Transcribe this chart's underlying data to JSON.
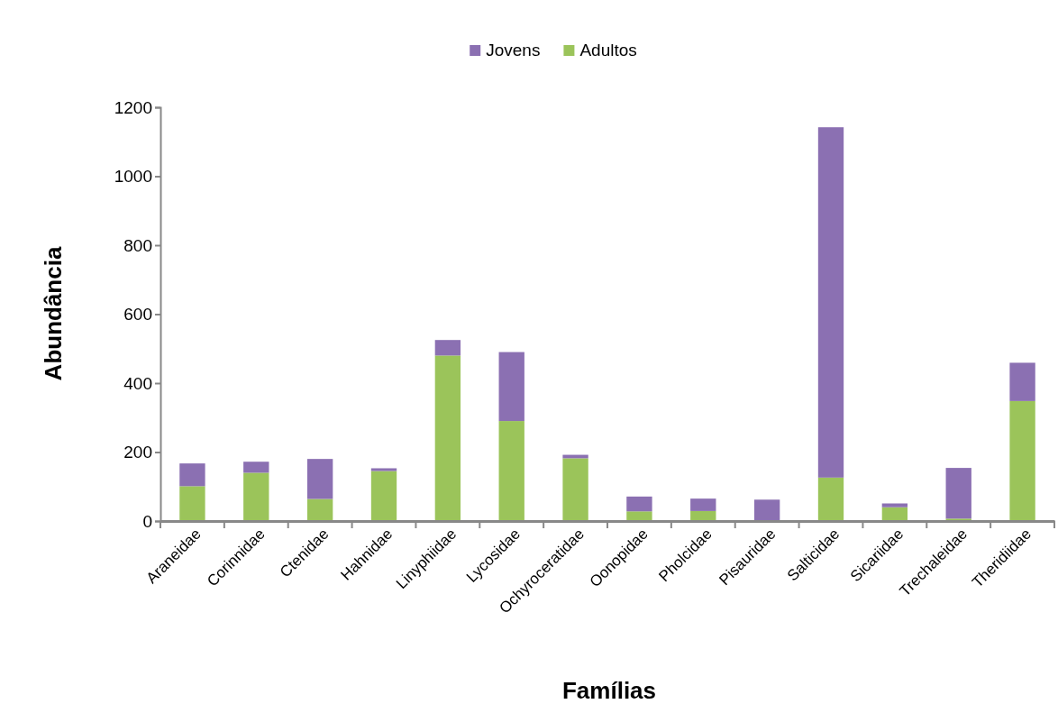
{
  "chart_data": {
    "type": "bar",
    "stacked": true,
    "xlabel": "Famílias",
    "ylabel": "Abundância",
    "categories": [
      "Araneidae",
      "Corinnidae",
      "Ctenidae",
      "Hahnidae",
      "Linyphiidae",
      "Lycosidae",
      "Ochyroceratidae",
      "Oonopidae",
      "Pholcidae",
      "Pisauridae",
      "Salticidae",
      "Sicariidae",
      "Trechaleidae",
      "Theridiidae"
    ],
    "series": [
      {
        "name": "Adultos",
        "color": "#9bc45a",
        "values": [
          101,
          140,
          64,
          145,
          480,
          290,
          182,
          28,
          29,
          0,
          126,
          40,
          7,
          348
        ]
      },
      {
        "name": "Jovens",
        "color": "#8b70b2",
        "values": [
          66,
          32,
          116,
          8,
          45,
          200,
          10,
          43,
          36,
          62,
          1016,
          11,
          147,
          111
        ]
      }
    ],
    "ylim": [
      0,
      1200
    ],
    "yticks": [
      0,
      200,
      400,
      600,
      800,
      1000,
      1200
    ],
    "legend": "top"
  }
}
